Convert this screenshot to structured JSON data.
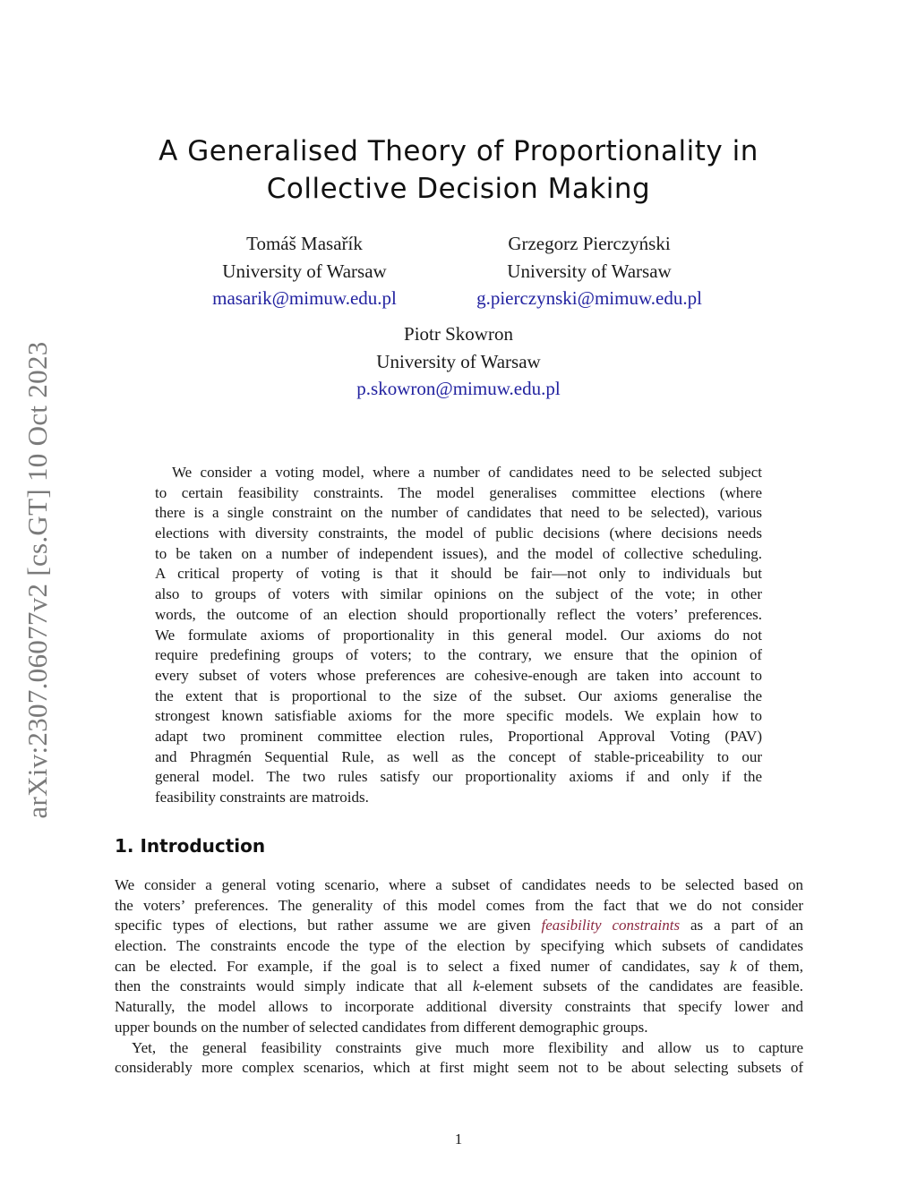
{
  "sidebar_id": "arXiv:2307.06077v2  [cs.GT]  10 Oct 2023",
  "title_lines": [
    "A Generalised Theory of Proportionality in",
    "Collective Decision Making"
  ],
  "authors": [
    {
      "name": "Tomáš Masařík",
      "affiliation": "University of Warsaw",
      "email": "masarik@mimuw.edu.pl"
    },
    {
      "name": "Grzegorz Pierczyński",
      "affiliation": "University of Warsaw",
      "email": "g.pierczynski@mimuw.edu.pl"
    },
    {
      "name": "Piotr Skowron",
      "affiliation": "University of Warsaw",
      "email": "p.skowron@mimuw.edu.pl"
    }
  ],
  "abstract_lines": [
    "We consider a voting model, where a number of candidates need to be selected subject",
    "to certain feasibility constraints. The model generalises committee elections (where",
    "there is a single constraint on the number of candidates that need to be selected), various",
    "elections with diversity constraints, the model of public decisions (where decisions needs",
    "to be taken on a number of independent issues), and the model of collective scheduling.",
    "A critical property of voting is that it should be fair—not only to individuals but",
    "also to groups of voters with similar opinions on the subject of the vote; in other",
    "words, the outcome of an election should proportionally reflect the voters’ preferences.",
    "We formulate axioms of proportionality in this general model. Our axioms do not",
    "require predefining groups of voters; to the contrary, we ensure that the opinion of",
    "every subset of voters whose preferences are cohesive-enough are taken into account to",
    "the extent that is proportional to the size of the subset. Our axioms generalise the",
    "strongest known satisfiable axioms for the more specific models. We explain how to",
    "adapt two prominent committee election rules, Proportional Approval Voting (PAV)",
    "and Phragmén Sequential Rule, as well as the concept of stable-priceability to our",
    "general model. The two rules satisfy our proportionality axioms if and only if the",
    "feasibility constraints are matroids."
  ],
  "section_heading": "1.  Introduction",
  "intro_lines": [
    "We consider a general voting scenario, where a subset of candidates needs to be selected based on",
    "the voters’ preferences. The generality of this model comes from the fact that we do not consider",
    [
      [
        "specific types of elections, but rather assume we are given ",
        ""
      ],
      [
        "feasibility constraints",
        "link"
      ],
      [
        " as a part of an",
        ""
      ]
    ],
    "election. The constraints encode the type of the election by specifying which subsets of candidates",
    [
      [
        "can be elected. For example, if the goal is to select a fixed numer of candidates, say ",
        ""
      ],
      [
        "k",
        "it"
      ],
      [
        " of them,",
        ""
      ]
    ],
    [
      [
        "then the constraints would simply indicate that all ",
        ""
      ],
      [
        "k",
        "it"
      ],
      [
        "-element subsets of the candidates are feasible.",
        ""
      ]
    ],
    "Naturally, the model allows to incorporate additional diversity constraints that specify lower and",
    "upper bounds on the number of selected candidates from different demographic groups.",
    "Yet, the general feasibility constraints give much more flexibility and allow us to capture",
    "considerably more complex scenarios, which at first might seem not to be about selecting subsets of"
  ],
  "page_number": "1",
  "colors": {
    "email": "#2222a0",
    "link": "#8b2840",
    "sidebar": "#7a7a7a"
  }
}
